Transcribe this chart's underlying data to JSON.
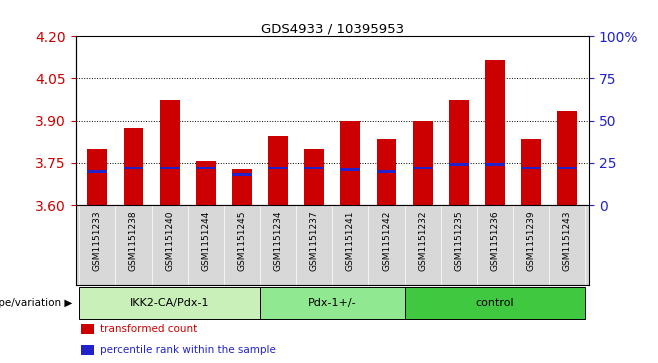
{
  "title": "GDS4933 / 10395953",
  "samples": [
    "GSM1151233",
    "GSM1151238",
    "GSM1151240",
    "GSM1151244",
    "GSM1151245",
    "GSM1151234",
    "GSM1151237",
    "GSM1151241",
    "GSM1151242",
    "GSM1151232",
    "GSM1151235",
    "GSM1151236",
    "GSM1151239",
    "GSM1151243"
  ],
  "transformed_count": [
    3.8,
    3.875,
    3.975,
    3.755,
    3.73,
    3.845,
    3.8,
    3.9,
    3.835,
    3.9,
    3.975,
    4.115,
    3.835,
    3.935
  ],
  "percentile_rank": [
    20,
    22,
    22,
    22,
    18,
    22,
    22,
    21,
    20,
    22,
    24,
    24,
    22,
    22
  ],
  "groups": [
    {
      "label": "IKK2-CA/Pdx-1",
      "start": 0,
      "end": 4,
      "color": "#c8f0b8"
    },
    {
      "label": "Pdx-1+/-",
      "start": 5,
      "end": 8,
      "color": "#90e890"
    },
    {
      "label": "control",
      "start": 9,
      "end": 13,
      "color": "#40c840"
    }
  ],
  "ylim_left": [
    3.6,
    4.2
  ],
  "ylim_right": [
    0,
    100
  ],
  "yticks_left": [
    3.6,
    3.75,
    3.9,
    4.05,
    4.2
  ],
  "yticks_right": [
    0,
    25,
    50,
    75,
    100
  ],
  "ytick_labels_right": [
    "0",
    "25",
    "50",
    "75",
    "100%"
  ],
  "bar_color_red": "#cc0000",
  "bar_color_blue": "#2222cc",
  "bar_width": 0.55,
  "genotype_label": "genotype/variation",
  "legend_items": [
    "transformed count",
    "percentile rank within the sample"
  ],
  "legend_colors": [
    "#cc0000",
    "#2222cc"
  ],
  "grid_yticks": [
    3.75,
    3.9,
    4.05
  ],
  "tick_bg_color": "#d8d8d8"
}
